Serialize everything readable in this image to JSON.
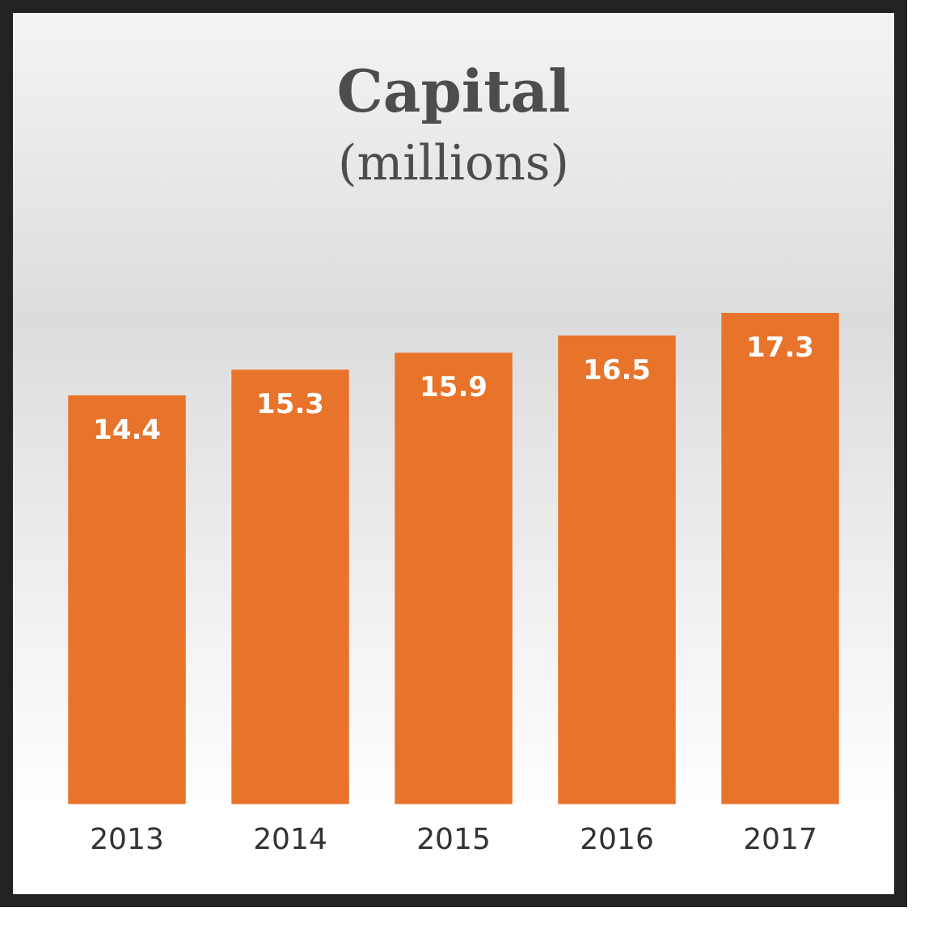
{
  "chart_data": {
    "type": "bar",
    "title": "Capital",
    "subtitle": "(millions)",
    "categories": [
      "2013",
      "2014",
      "2015",
      "2016",
      "2017"
    ],
    "values": [
      14.4,
      15.3,
      15.9,
      16.5,
      17.3
    ],
    "color": "#e8732a",
    "data_labels": true,
    "grid": false,
    "legend": false
  }
}
